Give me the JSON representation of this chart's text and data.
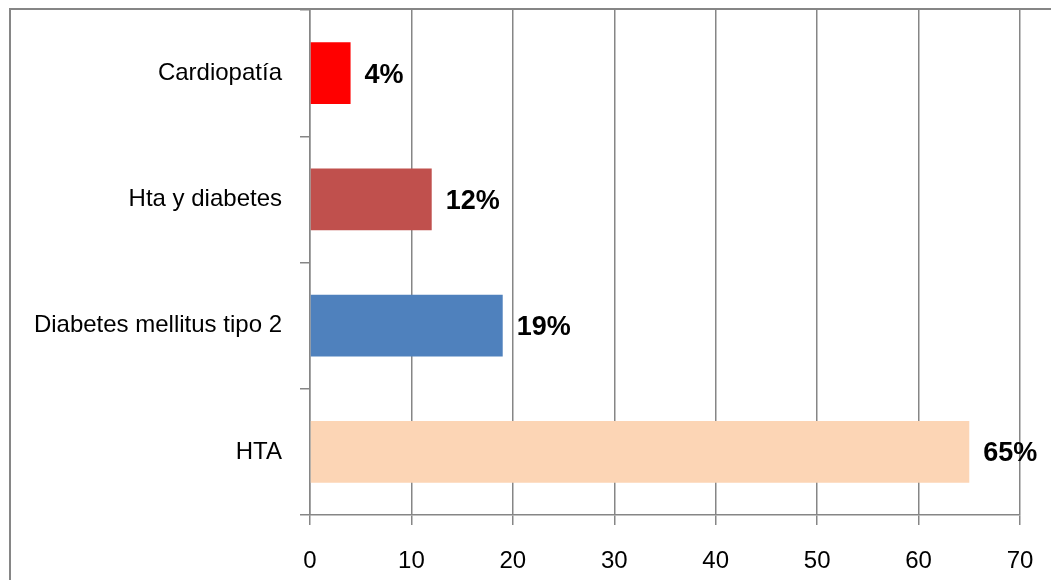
{
  "chart_data": {
    "type": "bar",
    "orientation": "horizontal",
    "categories": [
      "Cardiopatía",
      "Hta y diabetes",
      "Diabetes mellitus tipo 2",
      "HTA"
    ],
    "values": [
      4,
      12,
      19,
      65
    ],
    "colors": [
      "#ff0000",
      "#c0504d",
      "#4f81bd",
      "#fcd5b5"
    ],
    "value_labels": [
      "4%",
      "12%",
      "19%",
      "65%"
    ],
    "xlim": [
      0,
      70
    ],
    "xticks": [
      0,
      10,
      20,
      30,
      40,
      50,
      60,
      70
    ],
    "grid": "x"
  }
}
